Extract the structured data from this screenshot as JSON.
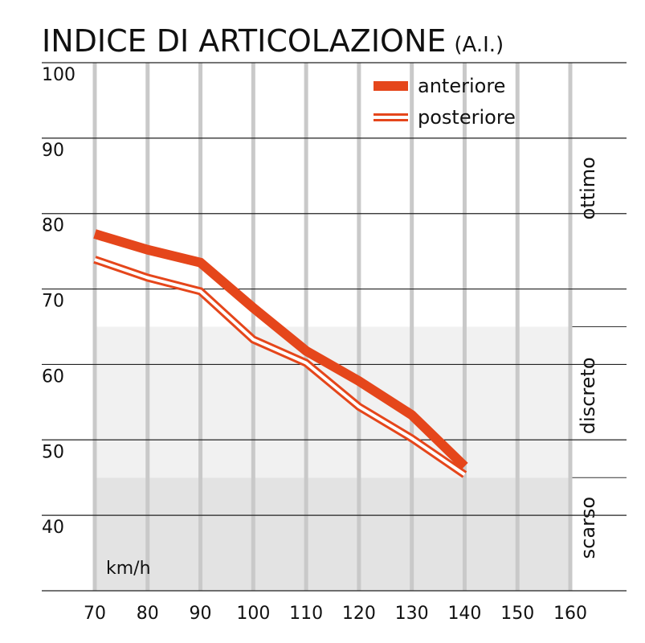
{
  "chart_data": {
    "type": "line",
    "title": "INDICE DI ARTICOLAZIONE",
    "title_suffix": "(A.I.)",
    "x_label": "km/h",
    "x": [
      70,
      80,
      90,
      100,
      110,
      120,
      130,
      140
    ],
    "xlim": [
      70,
      160
    ],
    "xticks": [
      70,
      80,
      90,
      100,
      110,
      120,
      130,
      140,
      150,
      160
    ],
    "ylim": [
      30,
      100
    ],
    "yticks": [
      40,
      50,
      60,
      70,
      80,
      90,
      100
    ],
    "grid": true,
    "legend": "top-right",
    "zones": [
      {
        "name": "scarso",
        "from": 30,
        "to": 45,
        "color": "#e3e3e3"
      },
      {
        "name": "discreto",
        "from": 45,
        "to": 65,
        "color": "#f1f1f1"
      },
      {
        "name": "ottimo",
        "from": 65,
        "to": 100,
        "color": "#ffffff"
      }
    ],
    "series": [
      {
        "name": "anteriore",
        "color": "#e5461b",
        "style": "solid",
        "values": [
          77.3,
          75.2,
          73.5,
          67.5,
          61.8,
          57.8,
          53.3,
          46.5
        ]
      },
      {
        "name": "posteriore",
        "color": "#e5461b",
        "style": "double",
        "values": [
          73.9,
          71.5,
          69.7,
          63.3,
          60.2,
          54.4,
          50.2,
          45.4
        ]
      }
    ]
  }
}
